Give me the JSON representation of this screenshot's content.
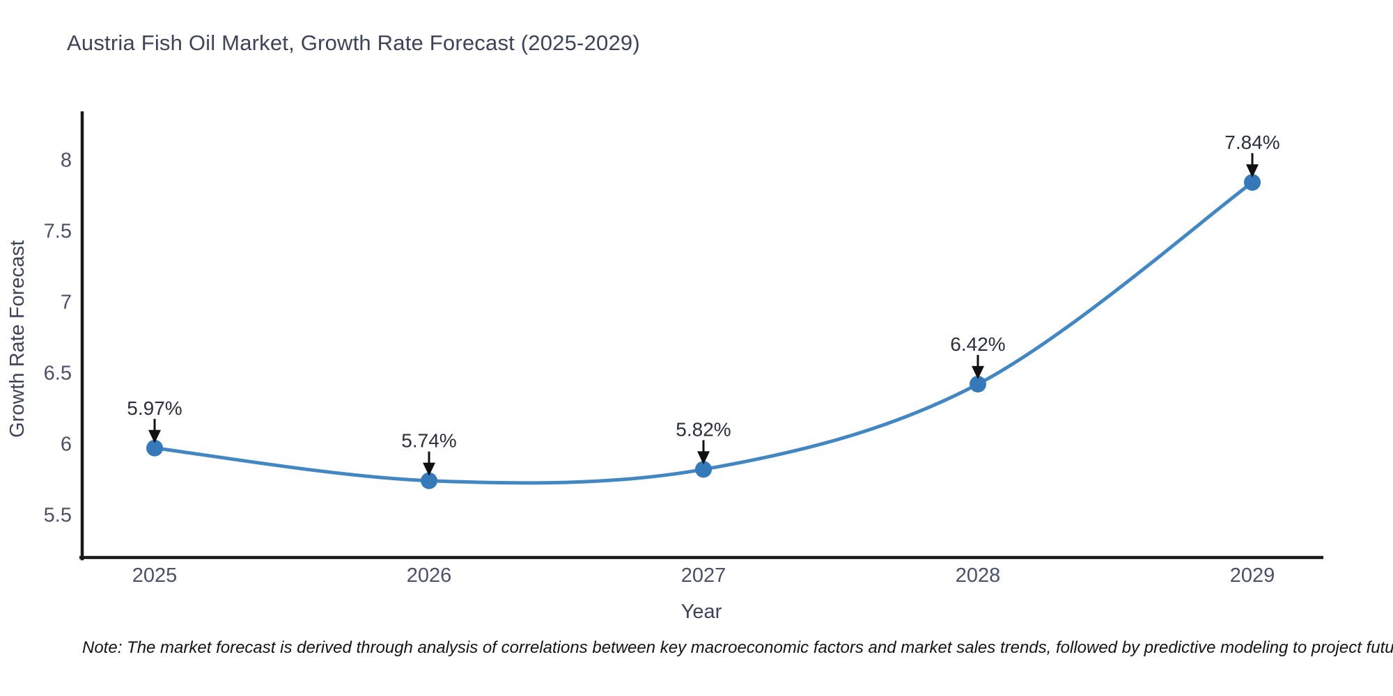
{
  "title": "Austria Fish Oil Market, Growth Rate Forecast (2025-2029)",
  "note": "Note: The market forecast is derived through analysis of correlations between key macroeconomic factors and market sales trends, followed by predictive modeling to project future sales",
  "chart_data": {
    "type": "line",
    "line_shape": "spline",
    "title": "Austria Fish Oil Market, Growth Rate Forecast (2025-2029)",
    "xlabel": "Year",
    "ylabel": "Growth Rate Forecast",
    "categories": [
      "2025",
      "2026",
      "2027",
      "2028",
      "2029"
    ],
    "values": [
      5.97,
      5.74,
      5.82,
      6.42,
      7.84
    ],
    "point_labels": [
      "5.97%",
      "5.74%",
      "5.82%",
      "6.42%",
      "7.84%"
    ],
    "yticks": [
      5.5,
      6,
      6.5,
      7,
      7.5,
      8
    ],
    "ytick_labels": [
      "5.5",
      "6",
      "6.5",
      "7",
      "7.5",
      "8"
    ],
    "ylim": [
      5.19,
      8.34
    ],
    "grid": false,
    "legend_position": "none",
    "annotation_style": "value-label-with-down-arrow",
    "colors": {
      "line": "#4286c2",
      "marker": "#3579b8",
      "axis": "#1a1a1a",
      "arrow": "#111111",
      "annotation_text": "#2b2f3a",
      "tick_label": "#4a5065",
      "axis_title": "#3d4458",
      "title": "#3d4458",
      "background": "#ffffff"
    }
  }
}
